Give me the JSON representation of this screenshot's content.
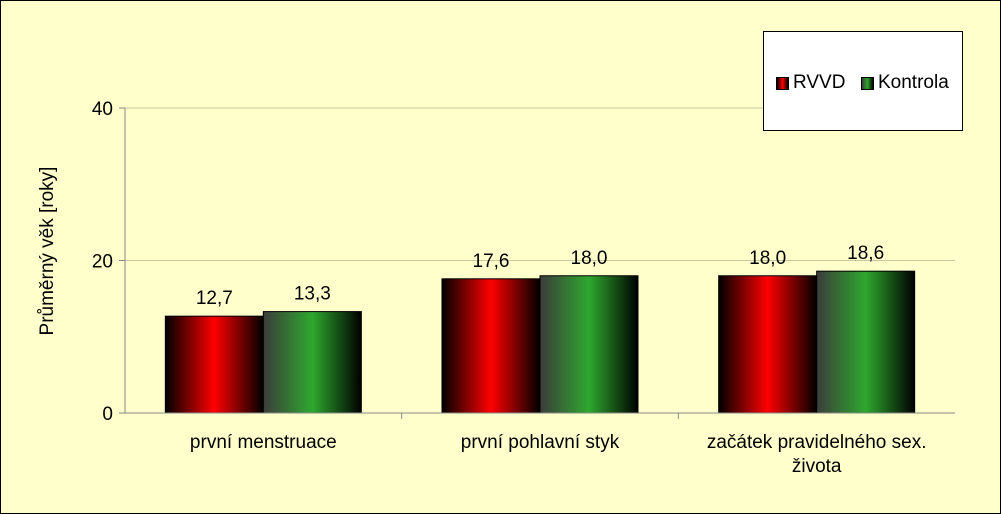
{
  "chart_data": {
    "type": "bar",
    "title": "",
    "xlabel": "",
    "ylabel": "Průměrný věk [roky]",
    "ylim": [
      0,
      40
    ],
    "yticks": [
      "0",
      "20",
      "40"
    ],
    "categories": [
      "první menstruace",
      "první pohlavní styk",
      "začátek pravidelného sex. života"
    ],
    "categories_lines": [
      [
        "první menstruace"
      ],
      [
        "první pohlavní styk"
      ],
      [
        "začátek pravidelného sex.",
        "života"
      ]
    ],
    "series": [
      {
        "name": "RVVD",
        "values": [
          12.7,
          17.6,
          18.0
        ],
        "labels": [
          "12,7",
          "17,6",
          "18,0"
        ],
        "color": "#ff0000"
      },
      {
        "name": "Kontrola",
        "values": [
          13.3,
          18.0,
          18.6
        ],
        "labels": [
          "13,3",
          "18,0",
          "18,6"
        ],
        "color": "#2ea82e"
      }
    ],
    "grid": true,
    "legend": "top-right"
  }
}
